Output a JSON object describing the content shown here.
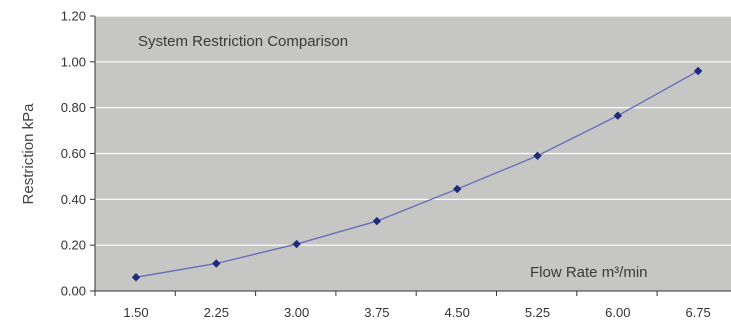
{
  "chart_data": {
    "type": "line",
    "title": "System Restriction Comparison",
    "xlabel": "Flow Rate m³/min",
    "ylabel": "Restriction kPa",
    "categories": [
      "1.50",
      "2.25",
      "3.00",
      "3.75",
      "4.50",
      "5.25",
      "6.00",
      "6.75"
    ],
    "series": [
      {
        "values": [
          0.06,
          0.12,
          0.205,
          0.305,
          0.445,
          0.59,
          0.765,
          0.96
        ]
      }
    ],
    "ylim": [
      0,
      1.2
    ],
    "yticks": [
      "0.00",
      "0.20",
      "0.40",
      "0.60",
      "0.80",
      "1.00",
      "1.20"
    ],
    "grid": true,
    "legend": "none",
    "colors": {
      "plot_bg": "#c6c6c4",
      "line": "#6a6fb8",
      "marker": "#1f2a7a",
      "grid": "#ffffff"
    }
  }
}
